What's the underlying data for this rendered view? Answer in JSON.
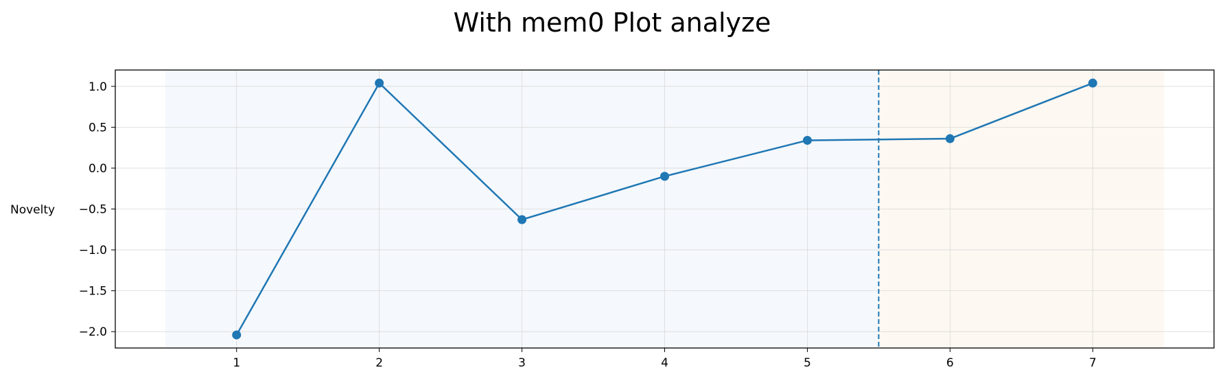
{
  "chart_data": {
    "type": "line",
    "title": "With mem0 Plot analyze",
    "xlabel": "",
    "ylabel": "Novelty",
    "x": [
      1,
      2,
      3,
      4,
      5,
      6,
      7
    ],
    "series": [
      {
        "values": [
          -2.04,
          1.04,
          -0.63,
          -0.1,
          0.34,
          0.36,
          1.04
        ]
      }
    ],
    "xlim": [
      0.15,
      7.85
    ],
    "ylim": [
      -2.2,
      1.2
    ],
    "xticks": [
      1,
      2,
      3,
      4,
      5,
      6,
      7
    ],
    "yticks": [
      1.0,
      0.5,
      0.0,
      -0.5,
      -1.0,
      -1.5,
      -2.0
    ],
    "ytick_labels": [
      "1.0",
      "0.5",
      "0.0",
      "−0.5",
      "−1.0",
      "−1.5",
      "−2.0"
    ],
    "grid": true,
    "shaded_regions": [
      {
        "x_start": 0.5,
        "x_end": 5.5,
        "color": "#f5f8fc"
      },
      {
        "x_start": 5.5,
        "x_end": 7.5,
        "color": "#fdf8f2"
      }
    ],
    "vertical_line": {
      "x": 5.5,
      "style": "dashed"
    },
    "colors": {
      "line": "#1f77b4",
      "grid": "#d9d9d9"
    }
  }
}
